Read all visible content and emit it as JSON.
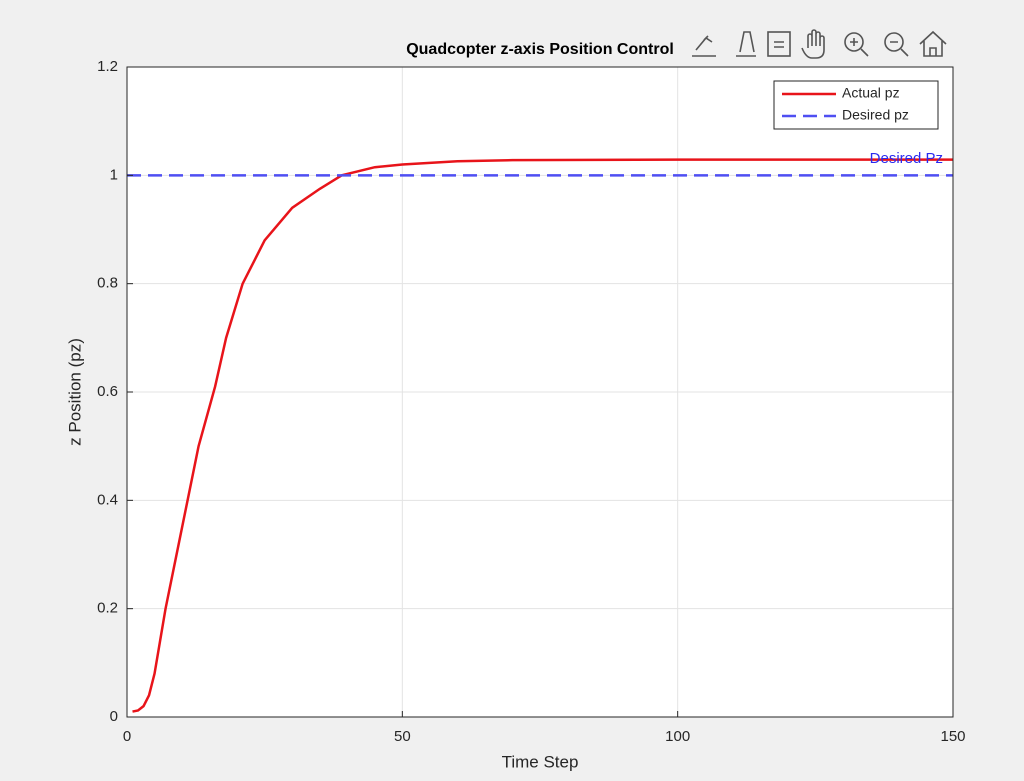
{
  "chart_data": {
    "type": "line",
    "title": "Quadcopter z-axis Position Control",
    "x_label": "Time Step",
    "y_label": "z Position (pz)",
    "xlim": [
      0,
      150
    ],
    "ylim": [
      0,
      1.2
    ],
    "xticks": [
      0,
      50,
      100,
      150
    ],
    "yticks": [
      0,
      0.2,
      0.4,
      0.6,
      0.8,
      1,
      1.2
    ],
    "grid": true,
    "legend": "top-right",
    "series": [
      {
        "name": "Actual pz",
        "color": "#e8141a",
        "style": "solid",
        "x": [
          1,
          2,
          3,
          4,
          5,
          6,
          7,
          9,
          11,
          13,
          16,
          18,
          21,
          25,
          30,
          35,
          39,
          45,
          50,
          60,
          70,
          100,
          150
        ],
        "values": [
          0.01,
          0.012,
          0.02,
          0.04,
          0.08,
          0.14,
          0.2,
          0.3,
          0.4,
          0.5,
          0.61,
          0.7,
          0.8,
          0.88,
          0.94,
          0.975,
          1.0,
          1.015,
          1.02,
          1.026,
          1.028,
          1.029,
          1.029
        ]
      },
      {
        "name": "Desired pz",
        "color": "#4f4ff2",
        "style": "dashed",
        "x": [
          0,
          150
        ],
        "values": [
          1,
          1
        ]
      }
    ],
    "annotation": {
      "text": "Desired Pz",
      "x": 150,
      "y": 1.03,
      "color": "#2a2af0"
    }
  }
}
